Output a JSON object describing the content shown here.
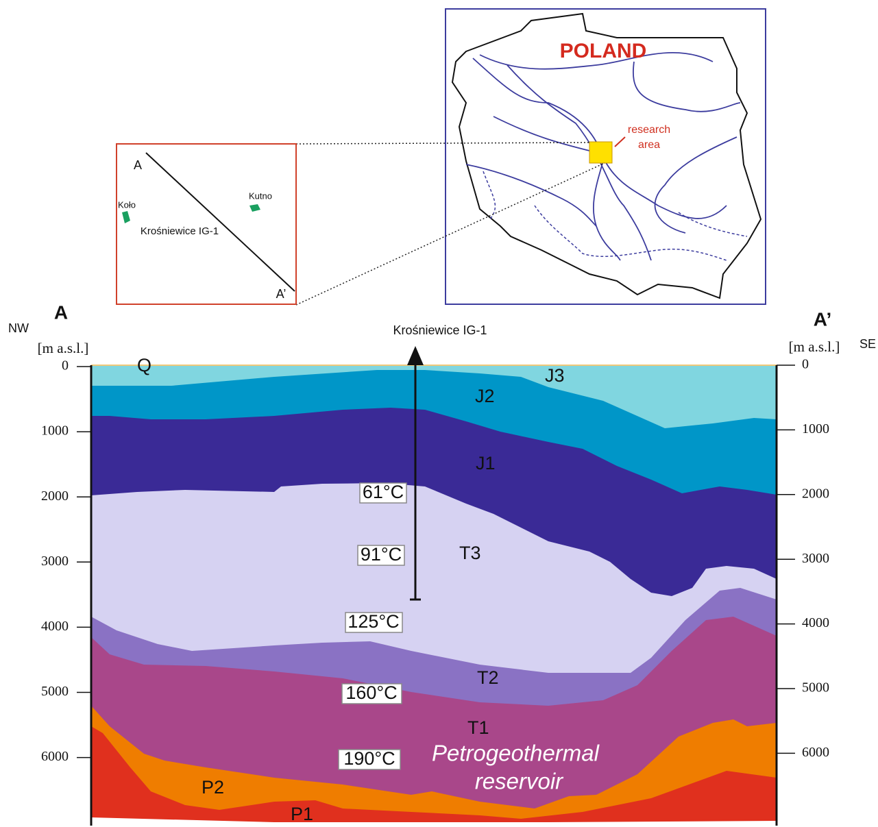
{
  "map": {
    "title": "POLAND",
    "annotation": [
      "research",
      "area"
    ]
  },
  "inset": {
    "start": "A",
    "end": "A’",
    "towns": [
      "Koło",
      "Kutno"
    ],
    "well": "Krośniewice IG-1"
  },
  "section": {
    "start": "A",
    "end": "A’",
    "left_direction": "NW",
    "right_direction": "SE",
    "axis_label": "[m a.s.l.]",
    "well": "Krośniewice IG-1",
    "left_ticks": [
      0,
      1000,
      2000,
      3000,
      4000,
      5000,
      6000
    ],
    "right_ticks": [
      0,
      1000,
      2000,
      3000,
      4000,
      5000,
      6000
    ],
    "layers": [
      "Q",
      "J3",
      "J2",
      "J1",
      "T3",
      "T2",
      "T1",
      "P2",
      "P1"
    ],
    "temperatures": [
      "61°C",
      "91°C",
      "125°C",
      "160°C",
      "190°C"
    ],
    "reservoir": [
      "Petrogeothermal",
      "reservoir"
    ]
  }
}
